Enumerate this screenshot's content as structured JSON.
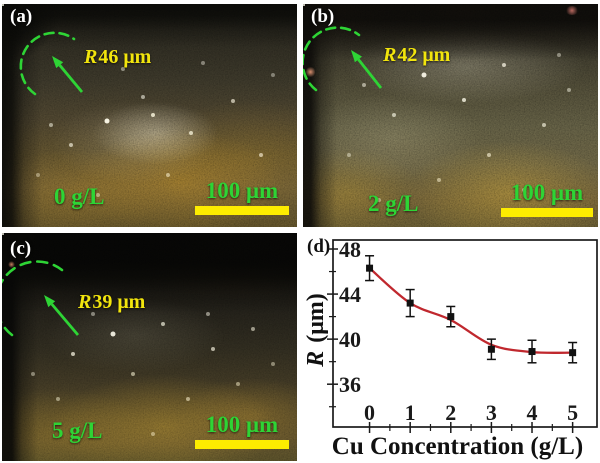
{
  "panels": {
    "a": {
      "letter": "(a)",
      "radius_prefix": "R",
      "radius_value": "46 μm",
      "concentration": "0 g/L",
      "scale_label": "100 μm"
    },
    "b": {
      "letter": "(b)",
      "radius_prefix": "R",
      "radius_value": "42 μm",
      "concentration": "2 g/L",
      "scale_label": "100 μm"
    },
    "c": {
      "letter": "(c)",
      "radius_prefix": "R",
      "radius_value": "39 μm",
      "concentration": "5 g/L",
      "scale_label": "100 μm"
    },
    "d": {
      "letter": "(d)",
      "ylabel_prefix": "R",
      "ylabel_rest": " (μm)",
      "xlabel": "Cu Concentration (g/L)"
    }
  },
  "chart_data": {
    "type": "line",
    "title": "",
    "xlabel": "Cu Concentration (g/L)",
    "ylabel": "R (μm)",
    "x": [
      0,
      1,
      2,
      3,
      4,
      5
    ],
    "series": [
      {
        "name": "R",
        "values": [
          46.3,
          43.2,
          42.0,
          39.1,
          38.9,
          38.8
        ],
        "errors": [
          1.1,
          1.2,
          0.9,
          0.9,
          1.0,
          0.9
        ],
        "fit_values": [
          46.3,
          43.2,
          41.7,
          39.5,
          38.85,
          38.8
        ]
      }
    ],
    "xlim": [
      -0.9,
      5.6
    ],
    "ylim": [
      32.2,
      48.8
    ],
    "xticks": [
      0,
      1,
      2,
      3,
      4,
      5
    ],
    "xticks_minor": [
      0.5,
      1.5,
      2.5,
      3.5,
      4.5
    ],
    "yticks": [
      36,
      40,
      44,
      48
    ],
    "yticks_minor": [
      34,
      38,
      42,
      46
    ],
    "grid": false,
    "legend": null,
    "line_color": "#c0282e",
    "marker": "square",
    "marker_color": "#111111",
    "axis_color": "#1a1a1a"
  },
  "colors": {
    "annotation_green": "#2ed435",
    "annotation_yellow": "#f2e50d",
    "scalebar_yellow": "#fdec00",
    "curve_red": "#c0282e"
  }
}
